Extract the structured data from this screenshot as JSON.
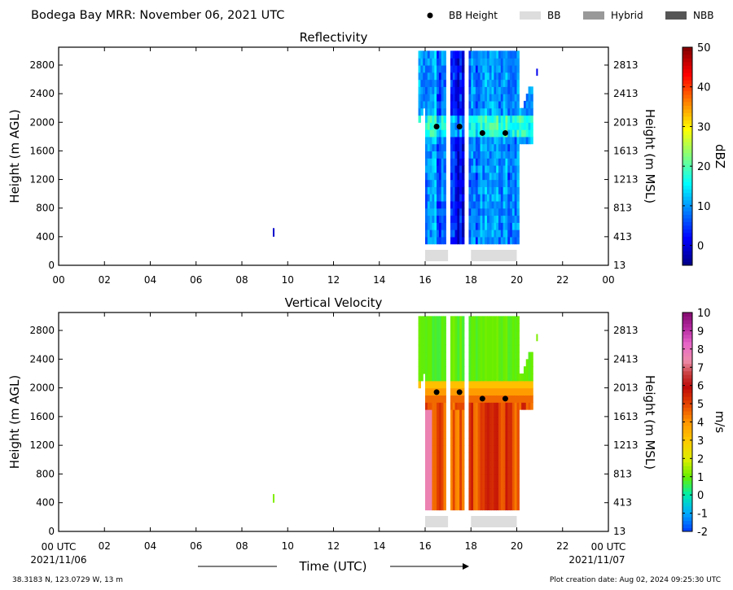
{
  "header": {
    "title": "Bodega Bay MRR:  November 06, 2021 UTC",
    "legend": [
      {
        "label": "BB Height",
        "marker": "dot",
        "color": "#000000"
      },
      {
        "label": "BB",
        "marker": "box",
        "color": "#dddddd"
      },
      {
        "label": "Hybrid",
        "marker": "box",
        "color": "#999999"
      },
      {
        "label": "NBB",
        "marker": "box",
        "color": "#555555"
      }
    ]
  },
  "footer": {
    "coords": "38.3183 N, 123.0729 W, 13 m",
    "creation": "Plot creation date: Aug 02, 2024 09:25:30 UTC",
    "xlabel": "Time (UTC)",
    "start_time": "00 UTC",
    "end_time": "00 UTC",
    "start_date": "2021/11/06",
    "end_date": "2021/11/07"
  },
  "chart_data": [
    {
      "type": "heatmap",
      "title": "Reflectivity",
      "ylabel": "Height (m AGL)",
      "ylabel_right": "Height (m MSL)",
      "xlim": [
        0,
        24
      ],
      "ylim": [
        0,
        3050
      ],
      "x_ticks": [
        "00",
        "02",
        "04",
        "06",
        "08",
        "10",
        "12",
        "14",
        "16",
        "18",
        "20",
        "22",
        "00"
      ],
      "y_ticks": [
        0,
        400,
        800,
        1200,
        1600,
        2000,
        2400,
        2800
      ],
      "y_ticks_right": [
        13,
        413,
        813,
        1213,
        1613,
        2013,
        2413,
        2813
      ],
      "colorbar": {
        "label": "dBZ",
        "min": -5,
        "max": 50,
        "ticks": [
          0,
          10,
          20,
          30,
          40,
          50
        ]
      },
      "bb_height_points": [
        {
          "x": 16.5,
          "y": 1940
        },
        {
          "x": 17.5,
          "y": 1940
        },
        {
          "x": 18.5,
          "y": 1850
        },
        {
          "x": 19.5,
          "y": 1850
        }
      ],
      "bb_type_bars": [
        {
          "start": 16.0,
          "end": 17.0,
          "type": "BB"
        },
        {
          "start": 18.0,
          "end": 20.0,
          "type": "BB"
        }
      ]
    },
    {
      "type": "heatmap",
      "title": "Vertical Velocity",
      "ylabel": "Height (m AGL)",
      "ylabel_right": "Height (m MSL)",
      "xlim": [
        0,
        24
      ],
      "ylim": [
        0,
        3050
      ],
      "x_ticks": [
        "02",
        "04",
        "06",
        "08",
        "10",
        "12",
        "14",
        "16",
        "18",
        "20",
        "22"
      ],
      "y_ticks": [
        0,
        400,
        800,
        1200,
        1600,
        2000,
        2400,
        2800
      ],
      "y_ticks_right": [
        13,
        413,
        813,
        1213,
        1613,
        2013,
        2413,
        2813
      ],
      "colorbar": {
        "label": "m/s",
        "min": -2,
        "max": 10,
        "ticks": [
          -2,
          -1,
          0,
          1,
          2,
          3,
          4,
          5,
          6,
          7,
          8,
          9,
          10
        ]
      },
      "bb_height_points": [
        {
          "x": 16.5,
          "y": 1940
        },
        {
          "x": 17.5,
          "y": 1940
        },
        {
          "x": 18.5,
          "y": 1850
        },
        {
          "x": 19.5,
          "y": 1850
        }
      ],
      "bb_type_bars": [
        {
          "start": 16.0,
          "end": 17.0,
          "type": "BB"
        },
        {
          "start": 18.0,
          "end": 20.0,
          "type": "BB"
        }
      ]
    }
  ]
}
